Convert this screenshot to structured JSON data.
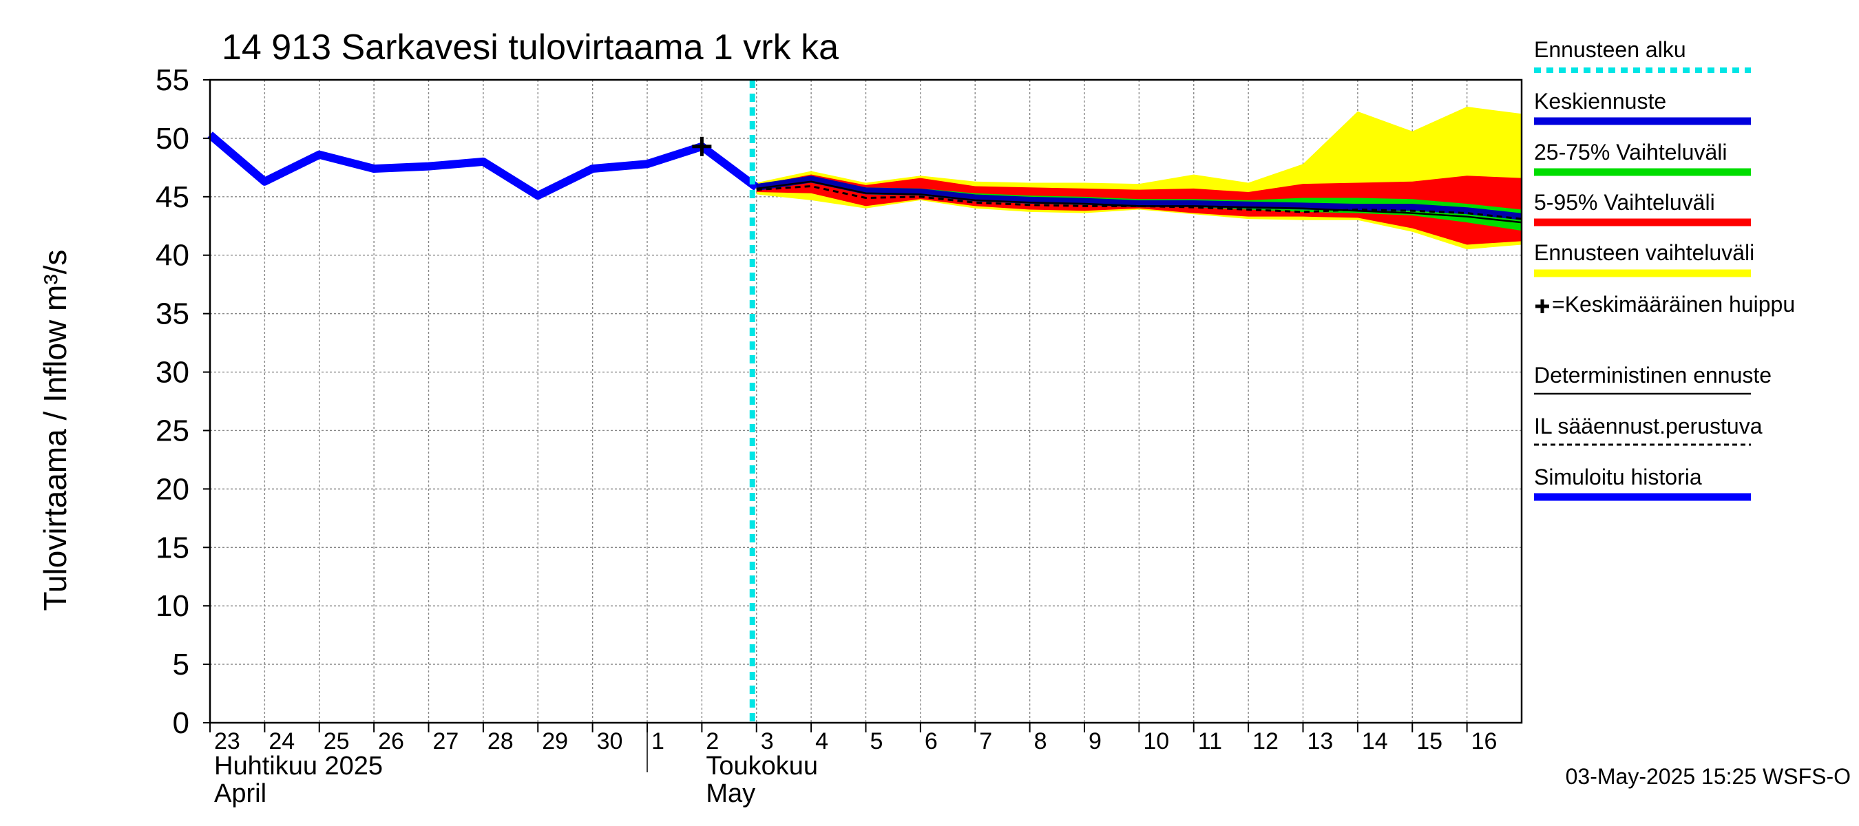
{
  "chart_data": {
    "type": "line",
    "title": "14 913 Sarkavesi tulovirtaama 1 vrk ka",
    "ylabel": "Tulovirtaama / Inflow    m³/s",
    "ylim": [
      0,
      55
    ],
    "yticks": [
      "0",
      "5",
      "10",
      "15",
      "20",
      "25",
      "30",
      "35",
      "40",
      "45",
      "50",
      "55"
    ],
    "day_labels": [
      "23",
      "24",
      "25",
      "26",
      "27",
      "28",
      "29",
      "30",
      "1",
      "2",
      "3",
      "4",
      "5",
      "6",
      "7",
      "8",
      "9",
      "10",
      "11",
      "12",
      "13",
      "14",
      "15",
      "16"
    ],
    "month_labels": [
      {
        "line1": "Huhtikuu  2025",
        "line2": "April",
        "day_index": 0
      },
      {
        "line1": "Toukokuu",
        "line2": "May",
        "day_index": 9
      }
    ],
    "forecast_start_day": 10.0,
    "peak_marker": {
      "day": 9,
      "value": 49.3
    },
    "history": {
      "name": "Simuloitu historia",
      "x": [
        0,
        1,
        2,
        3,
        4,
        5,
        6,
        7,
        8,
        9,
        10
      ],
      "values": [
        50.3,
        46.3,
        48.6,
        47.4,
        47.6,
        48.0,
        45.1,
        47.4,
        47.8,
        49.3,
        45.8
      ]
    },
    "forecast_x": [
      10,
      11,
      12,
      13,
      14,
      15,
      16,
      17,
      18,
      19,
      20,
      21,
      22,
      23,
      24
    ],
    "mean_forecast": {
      "name": "Keskiennuste",
      "values": [
        45.8,
        46.5,
        45.5,
        45.4,
        44.9,
        44.7,
        44.6,
        44.4,
        44.4,
        44.3,
        44.2,
        44.1,
        44.1,
        43.8,
        43.3
      ]
    },
    "deterministic": {
      "name": "Deterministinen ennuste",
      "values": [
        45.7,
        46.3,
        45.3,
        45.2,
        44.7,
        44.5,
        44.4,
        44.2,
        44.2,
        44.1,
        44.0,
        43.8,
        43.6,
        43.3,
        42.8
      ]
    },
    "il_forecast": {
      "name": "IL sääennust.perustuva",
      "values": [
        45.6,
        45.9,
        44.9,
        45.0,
        44.5,
        44.3,
        44.2,
        44.2,
        44.1,
        43.9,
        43.7,
        43.9,
        43.8,
        43.6,
        43.1
      ]
    },
    "band_yellow": {
      "name": "Ennusteen vaihteluväli",
      "upper": [
        46.2,
        47.2,
        46.2,
        46.8,
        46.3,
        46.2,
        46.2,
        46.1,
        46.9,
        46.2,
        47.8,
        52.3,
        50.6,
        52.7,
        52.1
      ],
      "lower": [
        45.2,
        44.7,
        44.0,
        44.7,
        44.0,
        43.7,
        43.6,
        43.9,
        43.5,
        43.1,
        43.0,
        43.0,
        42.0,
        40.5,
        40.9
      ]
    },
    "band_red": {
      "name": "5-95% Vaihteluväli",
      "upper": [
        46.0,
        46.9,
        46.0,
        46.6,
        45.9,
        45.8,
        45.7,
        45.6,
        45.7,
        45.4,
        46.1,
        46.2,
        46.3,
        46.8,
        46.6
      ],
      "lower": [
        45.4,
        45.3,
        44.2,
        44.8,
        44.2,
        43.9,
        43.8,
        44.0,
        43.6,
        43.3,
        43.3,
        43.2,
        42.3,
        40.9,
        41.2
      ]
    },
    "band_green": {
      "name": "25-75% Vaihteluväli",
      "upper": [
        45.9,
        46.7,
        45.8,
        45.7,
        45.3,
        45.1,
        45.0,
        44.8,
        44.8,
        44.7,
        44.9,
        44.9,
        44.8,
        44.4,
        43.9
      ],
      "lower": [
        45.7,
        46.2,
        45.2,
        45.1,
        44.6,
        44.4,
        44.3,
        44.1,
        44.1,
        43.9,
        43.7,
        43.6,
        43.4,
        42.8,
        42.1
      ]
    },
    "legend": [
      {
        "label": "Ennusteen alku",
        "style": "dotted",
        "color": "#00e5e5"
      },
      {
        "label": "Keskiennuste",
        "style": "line",
        "color": "#0000dd"
      },
      {
        "label": "25-75% Vaihteluväli",
        "style": "line",
        "color": "#00dd00"
      },
      {
        "label": "5-95% Vaihteluväli",
        "style": "line",
        "color": "#ff0000"
      },
      {
        "label": "Ennusteen vaihteluväli",
        "style": "line",
        "color": "#ffff00"
      },
      {
        "label": "=Keskimääräinen huippu",
        "style": "cross",
        "color": "#000000"
      },
      {
        "label": "Deterministinen ennuste",
        "style": "thin",
        "color": "#000000"
      },
      {
        "label": "IL sääennust.perustuva",
        "style": "dashed",
        "color": "#000000"
      },
      {
        "label": "Simuloitu historia",
        "style": "line",
        "color": "#0000ff"
      }
    ],
    "timestamp": "03-May-2025 15:25 WSFS-O",
    "colors": {
      "history": "#0000ff",
      "mean": "#0000aa",
      "green": "#00dd00",
      "red": "#ff0000",
      "yellow": "#ffff00",
      "forecast_start": "#00e5e5",
      "grid": "#888888"
    }
  }
}
